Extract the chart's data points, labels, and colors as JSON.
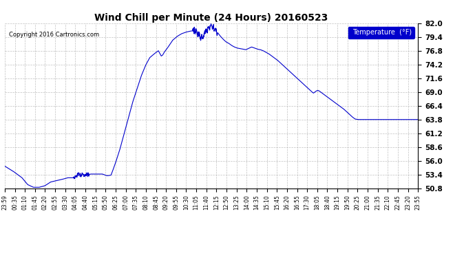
{
  "title": "Wind Chill per Minute (24 Hours) 20160523",
  "copyright": "Copyright 2016 Cartronics.com",
  "legend_label": "Temperature  (°F)",
  "line_color": "#0000cc",
  "background_color": "#ffffff",
  "plot_bg_color": "#ffffff",
  "grid_color": "#b0b0b0",
  "ylim": [
    50.8,
    82.0
  ],
  "yticks": [
    50.8,
    53.4,
    56.0,
    58.6,
    61.2,
    63.8,
    66.4,
    69.0,
    71.6,
    74.2,
    76.8,
    79.4,
    82.0
  ],
  "xtick_labels": [
    "23:59",
    "00:35",
    "01:10",
    "01:45",
    "02:20",
    "02:55",
    "03:30",
    "04:05",
    "04:40",
    "05:15",
    "05:50",
    "06:25",
    "07:00",
    "07:35",
    "08:10",
    "08:45",
    "09:20",
    "09:55",
    "10:30",
    "11:05",
    "11:40",
    "12:15",
    "12:50",
    "13:25",
    "14:00",
    "14:35",
    "15:10",
    "15:45",
    "16:20",
    "16:55",
    "17:30",
    "18:05",
    "18:40",
    "19:15",
    "19:50",
    "20:25",
    "21:00",
    "21:35",
    "22:10",
    "22:45",
    "23:20",
    "23:55"
  ],
  "shape_points": [
    [
      0,
      55.0
    ],
    [
      30,
      54.0
    ],
    [
      60,
      52.8
    ],
    [
      80,
      51.5
    ],
    [
      100,
      51.0
    ],
    [
      120,
      51.0
    ],
    [
      140,
      51.3
    ],
    [
      160,
      52.0
    ],
    [
      200,
      52.5
    ],
    [
      220,
      52.8
    ],
    [
      240,
      52.8
    ],
    [
      250,
      53.2
    ],
    [
      260,
      53.5
    ],
    [
      265,
      53.2
    ],
    [
      270,
      53.5
    ],
    [
      275,
      53.3
    ],
    [
      280,
      53.5
    ],
    [
      285,
      53.4
    ],
    [
      290,
      53.4
    ],
    [
      300,
      53.5
    ],
    [
      310,
      53.5
    ],
    [
      320,
      53.5
    ],
    [
      330,
      53.5
    ],
    [
      340,
      53.5
    ],
    [
      350,
      53.3
    ],
    [
      355,
      53.2
    ],
    [
      360,
      53.2
    ],
    [
      370,
      53.3
    ],
    [
      375,
      54.0
    ],
    [
      385,
      55.5
    ],
    [
      400,
      58.0
    ],
    [
      415,
      61.0
    ],
    [
      430,
      64.0
    ],
    [
      445,
      67.0
    ],
    [
      460,
      69.5
    ],
    [
      475,
      72.0
    ],
    [
      490,
      74.0
    ],
    [
      505,
      75.5
    ],
    [
      520,
      76.2
    ],
    [
      535,
      76.8
    ],
    [
      545,
      75.8
    ],
    [
      550,
      76.0
    ],
    [
      555,
      76.5
    ],
    [
      565,
      77.2
    ],
    [
      575,
      78.0
    ],
    [
      585,
      78.8
    ],
    [
      600,
      79.5
    ],
    [
      615,
      80.0
    ],
    [
      630,
      80.3
    ],
    [
      645,
      80.5
    ],
    [
      660,
      80.6
    ],
    [
      665,
      80.4
    ],
    [
      670,
      80.2
    ],
    [
      675,
      79.8
    ],
    [
      680,
      79.5
    ],
    [
      685,
      79.2
    ],
    [
      690,
      79.5
    ],
    [
      695,
      80.0
    ],
    [
      700,
      80.5
    ],
    [
      705,
      80.8
    ],
    [
      710,
      81.0
    ],
    [
      713,
      81.2
    ],
    [
      716,
      81.4
    ],
    [
      719,
      81.6
    ],
    [
      722,
      81.5
    ],
    [
      725,
      81.4
    ],
    [
      728,
      81.2
    ],
    [
      732,
      80.8
    ],
    [
      740,
      80.3
    ],
    [
      750,
      79.6
    ],
    [
      760,
      79.0
    ],
    [
      770,
      78.5
    ],
    [
      780,
      78.2
    ],
    [
      790,
      77.8
    ],
    [
      800,
      77.5
    ],
    [
      810,
      77.3
    ],
    [
      820,
      77.2
    ],
    [
      830,
      77.1
    ],
    [
      840,
      77.0
    ],
    [
      848,
      77.2
    ],
    [
      855,
      77.4
    ],
    [
      860,
      77.5
    ],
    [
      865,
      77.4
    ],
    [
      870,
      77.3
    ],
    [
      875,
      77.2
    ],
    [
      880,
      77.1
    ],
    [
      890,
      77.0
    ],
    [
      900,
      76.8
    ],
    [
      910,
      76.5
    ],
    [
      920,
      76.2
    ],
    [
      930,
      75.8
    ],
    [
      940,
      75.4
    ],
    [
      950,
      75.0
    ],
    [
      960,
      74.5
    ],
    [
      970,
      74.0
    ],
    [
      980,
      73.5
    ],
    [
      990,
      73.0
    ],
    [
      1000,
      72.5
    ],
    [
      1010,
      72.0
    ],
    [
      1020,
      71.5
    ],
    [
      1030,
      71.0
    ],
    [
      1040,
      70.5
    ],
    [
      1050,
      70.0
    ],
    [
      1060,
      69.5
    ],
    [
      1070,
      69.0
    ],
    [
      1075,
      68.8
    ],
    [
      1080,
      69.0
    ],
    [
      1085,
      69.2
    ],
    [
      1090,
      69.3
    ],
    [
      1095,
      69.2
    ],
    [
      1100,
      69.0
    ],
    [
      1110,
      68.6
    ],
    [
      1120,
      68.2
    ],
    [
      1130,
      67.8
    ],
    [
      1140,
      67.4
    ],
    [
      1150,
      67.0
    ],
    [
      1160,
      66.6
    ],
    [
      1170,
      66.2
    ],
    [
      1180,
      65.8
    ],
    [
      1190,
      65.3
    ],
    [
      1200,
      64.8
    ],
    [
      1210,
      64.3
    ],
    [
      1220,
      63.9
    ],
    [
      1230,
      63.8
    ],
    [
      1250,
      63.8
    ],
    [
      1270,
      63.8
    ],
    [
      1290,
      63.8
    ],
    [
      1310,
      63.8
    ],
    [
      1330,
      63.8
    ],
    [
      1350,
      63.8
    ],
    [
      1370,
      63.8
    ],
    [
      1390,
      63.8
    ],
    [
      1410,
      63.8
    ],
    [
      1430,
      63.8
    ],
    [
      1439,
      63.8
    ]
  ]
}
